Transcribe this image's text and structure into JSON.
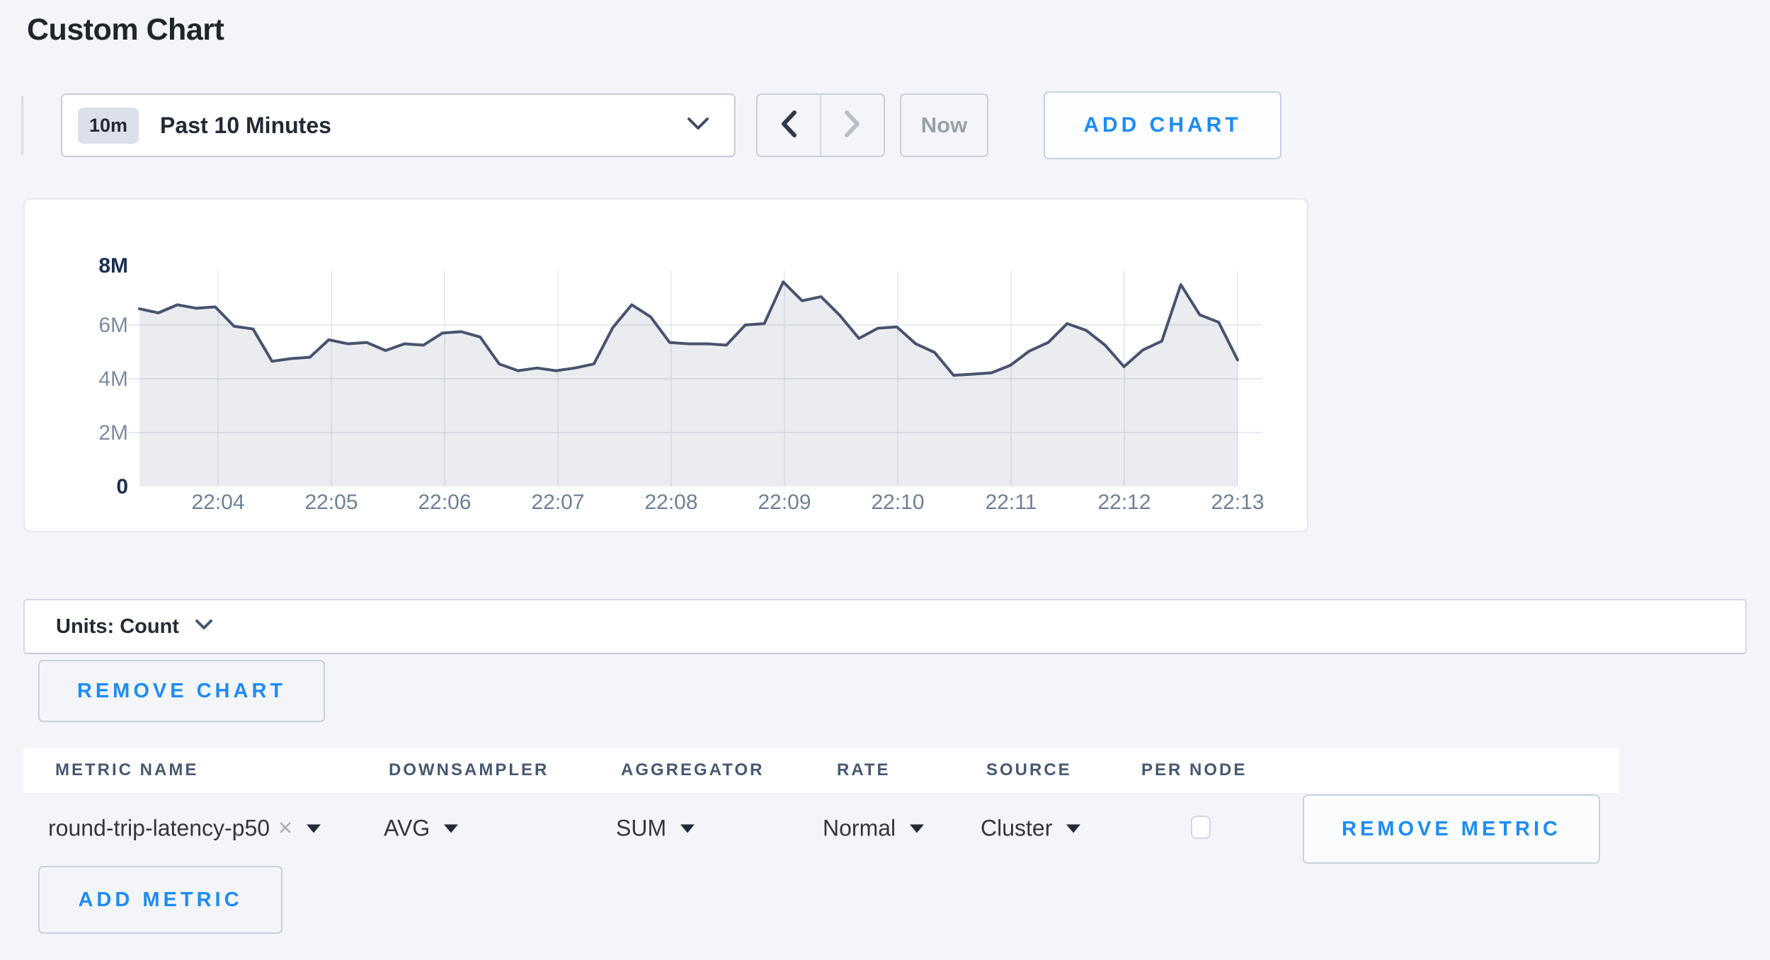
{
  "page": {
    "title": "Custom Chart"
  },
  "toolbar": {
    "range_badge": "10m",
    "range_label": "Past 10 Minutes",
    "prev_label": "previous time window",
    "next_label": "next time window",
    "now_label": "Now",
    "add_chart_label": "ADD CHART"
  },
  "chart_data": {
    "type": "area",
    "title": "",
    "xlabel": "",
    "ylabel": "",
    "y_unit": "millions (count)",
    "ylim_millions": [
      0,
      8
    ],
    "y_ticks": [
      "0",
      "2M",
      "4M",
      "6M",
      "8M"
    ],
    "x_ticks": [
      "22:04",
      "22:05",
      "22:06",
      "22:07",
      "22:08",
      "22:09",
      "22:10",
      "22:11",
      "22:12",
      "22:13"
    ],
    "start_time": "22:03:20",
    "interval_seconds": 10,
    "grid": true,
    "legend": "none",
    "series": [
      {
        "name": "round-trip-latency-p50",
        "values_millions": [
          6.6,
          6.45,
          6.75,
          6.62,
          6.67,
          5.95,
          5.85,
          4.65,
          4.75,
          4.8,
          5.45,
          5.3,
          5.35,
          5.05,
          5.3,
          5.25,
          5.7,
          5.75,
          5.55,
          4.55,
          4.3,
          4.4,
          4.3,
          4.4,
          4.55,
          5.9,
          6.75,
          6.3,
          5.35,
          5.3,
          5.3,
          5.25,
          6.0,
          6.05,
          7.6,
          6.9,
          7.05,
          6.35,
          5.5,
          5.88,
          5.93,
          5.3,
          4.98,
          4.13,
          4.17,
          4.22,
          4.5,
          5.03,
          5.35,
          6.05,
          5.8,
          5.25,
          4.45,
          5.07,
          5.4,
          7.5,
          6.38,
          6.1,
          4.7
        ]
      }
    ],
    "colors": {
      "line": "#47536e",
      "fill": "#47536e",
      "fill_opacity": 0.11,
      "grid_h": "#dfe5ec",
      "grid_v": "#e4e8ef",
      "tick_label": "#6e8096",
      "y_label_mid": "#7d8ba1",
      "y_label_end": "#1b2f51"
    }
  },
  "units_bar": {
    "label": "Units: Count"
  },
  "chart_actions": {
    "remove_chart_label": "REMOVE CHART",
    "add_metric_label": "ADD METRIC"
  },
  "metrics_table": {
    "columns": [
      "METRIC NAME",
      "DOWNSAMPLER",
      "AGGREGATOR",
      "RATE",
      "SOURCE",
      "PER NODE"
    ],
    "rows": [
      {
        "metric_name": "round-trip-latency-p50",
        "remove_tag_symbol": "×",
        "downsampler": "AVG",
        "aggregator": "SUM",
        "rate": "Normal",
        "source": "Cluster",
        "per_node_checked": false,
        "remove_label": "REMOVE METRIC"
      }
    ]
  },
  "theme": {
    "accent_blue": "#1d8cf4",
    "page_bg": "#f4f5f9",
    "panel_bg": "#ffffff",
    "border": "#c9cfdd",
    "text_dark": "#242a35",
    "text_slate": "#475872",
    "text_disabled": "#9aa0ab"
  }
}
